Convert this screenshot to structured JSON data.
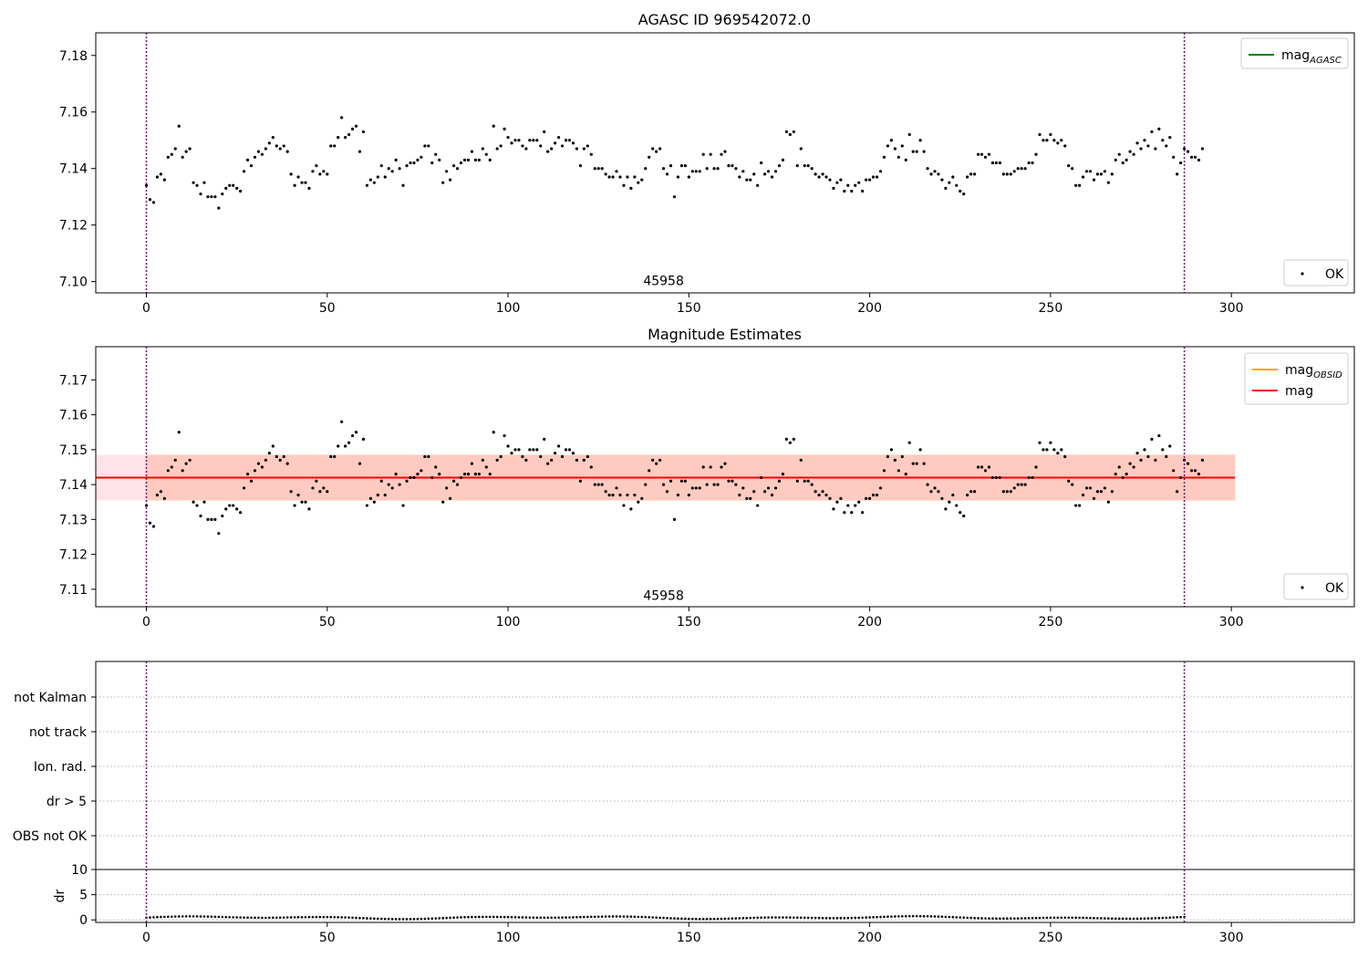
{
  "figure": {
    "title_top": "AGASC ID 969542072.0",
    "title_middle": "Magnitude Estimates"
  },
  "colors": {
    "mag_agasc": "#008000",
    "mag_obsid": "#ffa500",
    "mag": "#ff0000",
    "band_outer": "#ffc0cb",
    "band_inner": "#ffa07a",
    "obs_line": "#800080",
    "points": "#000000"
  },
  "chart_data": [
    {
      "type": "scatter",
      "title": "AGASC ID 969542072.0",
      "xlim": [
        -14,
        334
      ],
      "ylim": [
        7.096,
        7.188
      ],
      "x_ticks": [
        0,
        50,
        100,
        150,
        200,
        250,
        300
      ],
      "y_ticks": [
        7.1,
        7.12,
        7.14,
        7.16,
        7.18
      ],
      "grid": false,
      "legend_top": "top-right",
      "legend_bottom": "bottom-right",
      "legend": [
        {
          "name": "mag",
          "sub": "AGASC",
          "kind": "line",
          "color": "#008000"
        },
        {
          "name": "OK",
          "kind": "point",
          "color": "#000000"
        }
      ],
      "vlines": [
        0,
        287
      ],
      "obsid_label": {
        "text": "45958",
        "x": 143,
        "y": 7.1
      }
    },
    {
      "type": "scatter",
      "title": "Magnitude Estimates",
      "xlim": [
        -14,
        334
      ],
      "ylim": [
        7.105,
        7.1795
      ],
      "x_ticks": [
        0,
        50,
        100,
        150,
        200,
        250,
        300
      ],
      "y_ticks": [
        7.11,
        7.12,
        7.13,
        7.14,
        7.15,
        7.16,
        7.17
      ],
      "grid": false,
      "legend_top": "top-right",
      "legend_bottom": "bottom-right",
      "legend": [
        {
          "name": "mag",
          "sub": "OBSID",
          "kind": "line",
          "color": "#ffa500"
        },
        {
          "name": "mag",
          "sub": "",
          "kind": "line",
          "color": "#ff0000"
        },
        {
          "name": "OK",
          "kind": "point",
          "color": "#000000"
        }
      ],
      "mag_line": {
        "x": [
          -14,
          301
        ],
        "y": 7.142
      },
      "band_outer": {
        "x": [
          -14,
          301
        ],
        "y": [
          7.1355,
          7.1485
        ]
      },
      "band_inner": {
        "x": [
          0,
          301
        ],
        "y": [
          7.1355,
          7.1485
        ]
      },
      "vlines": [
        0,
        287
      ],
      "obsid_label": {
        "text": "45958",
        "x": 143,
        "y": 7.108
      }
    },
    {
      "type": "scatter",
      "title": "",
      "xlim": [
        -14,
        334
      ],
      "categories": [
        "OBS not OK",
        "dr > 5",
        "Ion. rad.",
        "not track",
        "not Kalman"
      ],
      "grid": "horizontal-dotted",
      "vlines": [
        0,
        287
      ],
      "points": []
    },
    {
      "type": "scatter",
      "title": "",
      "ylabel": "dr",
      "xlim": [
        -14,
        334
      ],
      "ylim": [
        -0.5,
        10
      ],
      "x_ticks": [
        0,
        50,
        100,
        150,
        200,
        250,
        300
      ],
      "y_ticks": [
        0,
        5,
        10
      ],
      "grid": "horizontal-dotted",
      "vlines": [
        0,
        287
      ],
      "dr_pattern": {
        "count": 288,
        "min": 0.15,
        "max": 0.75
      }
    }
  ],
  "mag_series": [
    7.134,
    7.129,
    7.128,
    7.137,
    7.138,
    7.136,
    7.144,
    7.145,
    7.147,
    7.155,
    7.144,
    7.146,
    7.147,
    7.135,
    7.134,
    7.131,
    7.135,
    7.13,
    7.13,
    7.13,
    7.126,
    7.131,
    7.133,
    7.134,
    7.134,
    7.133,
    7.132,
    7.139,
    7.143,
    7.141,
    7.144,
    7.146,
    7.145,
    7.147,
    7.149,
    7.151,
    7.148,
    7.147,
    7.148,
    7.146,
    7.138,
    7.134,
    7.137,
    7.135,
    7.135,
    7.133,
    7.139,
    7.141,
    7.138,
    7.139,
    7.138,
    7.148,
    7.148,
    7.151,
    7.158,
    7.151,
    7.152,
    7.154,
    7.155,
    7.146,
    7.153,
    7.134,
    7.136,
    7.135,
    7.137,
    7.141,
    7.137,
    7.14,
    7.139,
    7.143,
    7.14,
    7.134,
    7.141,
    7.142,
    7.142,
    7.143,
    7.144,
    7.148,
    7.148,
    7.142,
    7.145,
    7.143,
    7.135,
    7.139,
    7.136,
    7.141,
    7.14,
    7.142,
    7.143,
    7.143,
    7.146,
    7.143,
    7.143,
    7.147,
    7.145,
    7.143,
    7.155,
    7.147,
    7.148,
    7.154,
    7.151,
    7.149,
    7.15,
    7.15,
    7.148,
    7.147,
    7.15,
    7.15,
    7.15,
    7.148,
    7.153,
    7.146,
    7.147,
    7.149,
    7.151,
    7.148,
    7.15,
    7.15,
    7.149,
    7.147,
    7.141,
    7.147,
    7.148,
    7.145,
    7.14,
    7.14,
    7.14,
    7.138,
    7.137,
    7.137,
    7.139,
    7.137,
    7.134,
    7.137,
    7.133,
    7.137,
    7.135,
    7.136,
    7.14,
    7.144,
    7.147,
    7.146,
    7.147,
    7.14,
    7.138,
    7.141,
    7.13,
    7.137,
    7.141,
    7.141,
    7.137,
    7.139,
    7.139,
    7.139,
    7.145,
    7.14,
    7.145,
    7.14,
    7.14,
    7.145,
    7.146,
    7.141,
    7.141,
    7.14,
    7.137,
    7.139,
    7.136,
    7.136,
    7.138,
    7.134,
    7.142,
    7.138,
    7.139,
    7.137,
    7.139,
    7.141,
    7.143,
    7.153,
    7.152,
    7.153,
    7.141,
    7.147,
    7.141,
    7.141,
    7.14,
    7.138,
    7.137,
    7.138,
    7.137,
    7.136,
    7.133,
    7.135,
    7.136,
    7.132,
    7.134,
    7.132,
    7.134,
    7.135,
    7.132,
    7.136,
    7.136,
    7.137,
    7.137,
    7.139,
    7.144,
    7.148,
    7.15,
    7.147,
    7.144,
    7.148,
    7.143,
    7.152,
    7.146,
    7.146,
    7.15,
    7.146,
    7.14,
    7.138,
    7.139,
    7.138,
    7.136,
    7.133,
    7.135,
    7.137,
    7.134,
    7.132,
    7.131,
    7.137,
    7.138,
    7.138,
    7.145,
    7.145,
    7.144,
    7.145,
    7.142,
    7.142,
    7.142,
    7.138,
    7.138,
    7.138,
    7.139,
    7.14,
    7.14,
    7.14,
    7.142,
    7.142,
    7.145,
    7.152,
    7.15,
    7.15,
    7.152,
    7.15,
    7.149,
    7.15,
    7.148,
    7.141,
    7.14,
    7.134,
    7.134,
    7.137,
    7.139,
    7.139,
    7.136,
    7.138,
    7.138,
    7.139,
    7.135,
    7.138,
    7.143,
    7.145,
    7.142,
    7.143,
    7.146,
    7.145,
    7.149,
    7.147,
    7.15,
    7.148,
    7.153,
    7.147,
    7.154,
    7.15,
    7.148,
    7.151,
    7.144,
    7.138,
    7.142,
    7.147,
    7.146,
    7.144,
    7.144,
    7.143,
    7.147
  ]
}
